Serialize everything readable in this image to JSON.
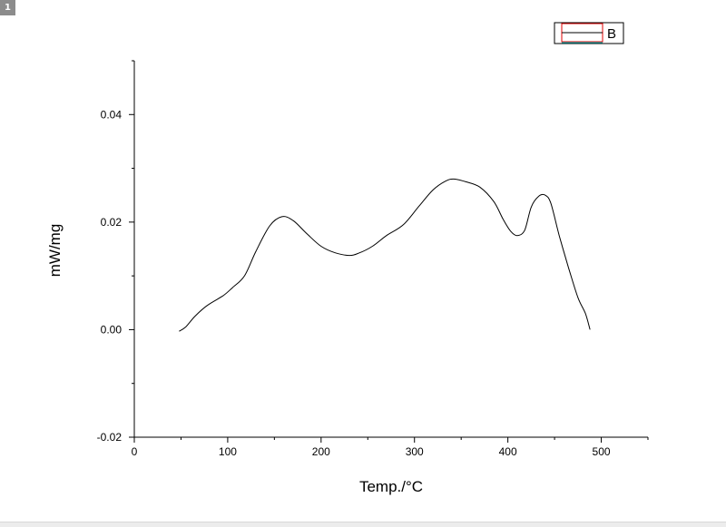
{
  "page": {
    "badge": "1"
  },
  "chart_data": {
    "type": "line",
    "title": "",
    "xlabel": "Temp./°C",
    "ylabel": "mW/mg",
    "xlim": [
      0,
      550
    ],
    "ylim": [
      -0.02,
      0.05
    ],
    "x_ticks": [
      0,
      100,
      200,
      300,
      400,
      500
    ],
    "x_tick_labels": [
      "0",
      "100",
      "200",
      "300",
      "400",
      "500"
    ],
    "y_ticks": [
      -0.02,
      0.0,
      0.02,
      0.04
    ],
    "y_tick_labels": [
      "-0.02",
      "0.00",
      "0.02",
      "0.04"
    ],
    "grid": false,
    "legend_position": "top-right",
    "series": [
      {
        "name": "B",
        "color": "#000000",
        "x": [
          48,
          55,
          65,
          78,
          95,
          105,
          118,
          130,
          145,
          158,
          170,
          185,
          200,
          215,
          230,
          240,
          255,
          270,
          288,
          305,
          320,
          333,
          342,
          355,
          370,
          385,
          395,
          403,
          410,
          418,
          425,
          433,
          440,
          446,
          455,
          465,
          475,
          483,
          488
        ],
        "y": [
          -0.0003,
          0.0005,
          0.0025,
          0.0045,
          0.0063,
          0.0078,
          0.01,
          0.0145,
          0.0193,
          0.021,
          0.0203,
          0.0178,
          0.0155,
          0.0143,
          0.0138,
          0.0142,
          0.0155,
          0.0175,
          0.0195,
          0.023,
          0.026,
          0.0276,
          0.028,
          0.0275,
          0.0265,
          0.0238,
          0.0205,
          0.0183,
          0.0175,
          0.0185,
          0.0228,
          0.0248,
          0.025,
          0.0235,
          0.0175,
          0.0115,
          0.006,
          0.003,
          0.0
        ]
      }
    ]
  }
}
